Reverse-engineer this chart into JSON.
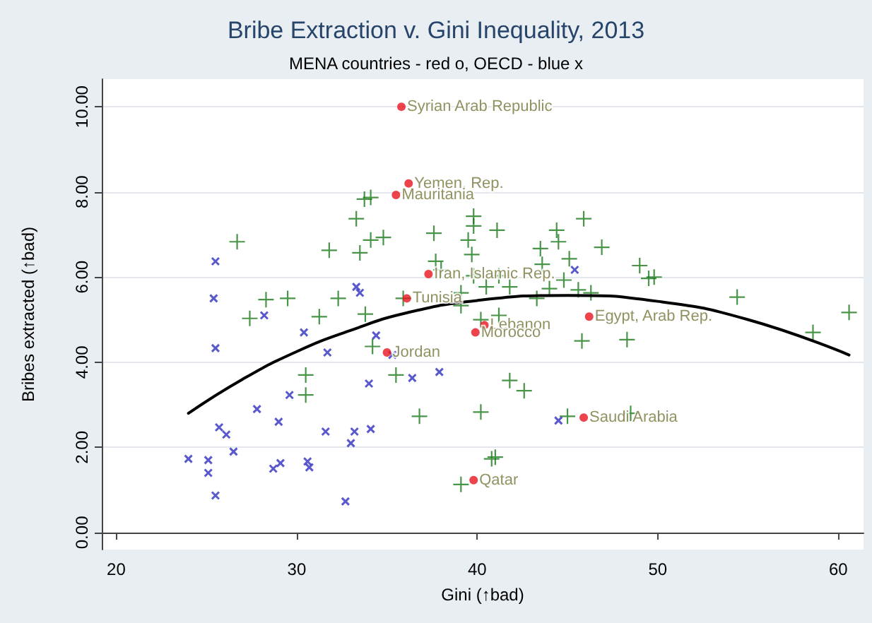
{
  "chart_data": {
    "type": "scatter",
    "title": "Bribe Extraction v. Gini Inequality, 2013",
    "subtitle": "MENA countries - red o, OECD - blue x",
    "xlabel": "Gini (↑bad)",
    "ylabel": "Bribes extracted (↑bad)",
    "xlim": [
      19.2,
      61.4
    ],
    "ylim": [
      -0.4,
      10.65
    ],
    "xticks": [
      20,
      30,
      40,
      50,
      60
    ],
    "yticks": [
      {
        "value": 0,
        "label": "0.00"
      },
      {
        "value": 2,
        "label": "2.00"
      },
      {
        "value": 4,
        "label": "4.00"
      },
      {
        "value": 6,
        "label": "6.00"
      },
      {
        "value": 8,
        "label": "8.00"
      },
      {
        "value": 10,
        "label": "10.00"
      }
    ],
    "grid": "y",
    "series": [
      {
        "type": "scatter",
        "color": "#1a7a1a",
        "marker": "plus",
        "x": [
          33.75,
          34.1,
          33.3,
          26.7,
          31.8,
          33.5,
          34.1,
          34.8,
          37.6,
          39.8,
          39.8,
          39.5,
          39.7,
          37.7,
          38.0,
          39.8,
          40.5,
          28.3,
          29.5,
          32.3,
          31.25,
          27.4,
          33.8,
          35.9,
          39.1,
          40.2,
          34.2,
          30.5,
          30.5,
          35.5,
          36.8,
          40.2,
          39.1,
          40.8,
          41.1,
          45.9,
          44.4,
          44.5,
          43.5,
          46.9,
          45.1,
          49.0,
          49.5,
          49.8,
          41.2,
          43.6,
          44.8,
          39.1,
          41.8,
          43.3,
          44.0,
          45.6,
          46.3,
          54.4,
          60.6,
          41.2,
          45.8,
          48.3,
          58.6,
          41.8,
          42.6,
          45.0,
          48.5,
          41.0
        ],
        "values": [
          7.83,
          7.87,
          7.37,
          6.83,
          6.63,
          6.57,
          6.87,
          6.93,
          7.03,
          7.43,
          7.2,
          6.87,
          6.53,
          6.37,
          6.17,
          6.03,
          5.77,
          5.47,
          5.5,
          5.5,
          5.07,
          5.03,
          5.13,
          5.5,
          5.33,
          5.0,
          4.37,
          3.7,
          3.23,
          3.7,
          2.73,
          2.83,
          1.13,
          1.73,
          7.1,
          7.37,
          7.1,
          6.83,
          6.67,
          6.7,
          6.43,
          6.27,
          5.97,
          6.0,
          6.03,
          6.3,
          5.93,
          5.63,
          5.77,
          5.5,
          5.73,
          5.7,
          5.63,
          5.53,
          5.17,
          5.1,
          4.5,
          4.53,
          4.7,
          3.57,
          3.33,
          2.73,
          2.8,
          1.77
        ]
      },
      {
        "type": "scatter",
        "color": "#3030c0",
        "marker": "cross",
        "x": [
          25.5,
          25.4,
          28.2,
          25.5,
          30.4,
          34.4,
          31.7,
          35.3,
          36.4,
          37.9,
          34.0,
          29.6,
          27.8,
          29.0,
          25.7,
          26.1,
          31.6,
          33.2,
          34.1,
          33.0,
          26.5,
          24.0,
          25.1,
          25.1,
          28.7,
          29.1,
          30.6,
          30.7,
          25.5,
          32.7,
          33.3,
          33.5,
          45.4,
          44.5
        ],
        "values": [
          6.37,
          5.5,
          5.1,
          4.33,
          4.7,
          4.63,
          4.23,
          4.17,
          3.63,
          3.77,
          3.5,
          3.23,
          2.9,
          2.6,
          2.47,
          2.3,
          2.37,
          2.37,
          2.43,
          2.1,
          1.9,
          1.73,
          1.7,
          1.4,
          1.5,
          1.63,
          1.67,
          1.53,
          0.87,
          0.73,
          5.77,
          5.63,
          6.17,
          2.63
        ]
      },
      {
        "type": "scatter",
        "color": "#e8141e",
        "marker": "circle",
        "x": [
          35.8,
          36.2,
          35.5,
          37.3,
          36.1,
          35.0,
          40.4,
          39.9,
          46.2,
          45.9,
          39.8
        ],
        "values": [
          10.0,
          8.2,
          7.93,
          6.07,
          5.5,
          4.23,
          4.87,
          4.7,
          5.07,
          2.7,
          1.23
        ]
      },
      {
        "type": "line",
        "color": "#000000",
        "marker": "none",
        "line_style": "solid",
        "x": [
          24,
          27,
          30,
          33,
          36,
          40,
          45,
          50,
          55,
          60.6
        ],
        "values": [
          2.8,
          3.6,
          4.25,
          4.75,
          5.15,
          5.45,
          5.57,
          5.43,
          5.0,
          4.17
        ]
      }
    ],
    "annotations": [
      {
        "text": "Syrian Arab Republic",
        "x": 35.8,
        "y": 10.0
      },
      {
        "text": "Yemen, Rep.",
        "x": 36.2,
        "y": 8.2
      },
      {
        "text": "Mauritania",
        "x": 35.5,
        "y": 7.93
      },
      {
        "text": "Iran, Islamic Rep.",
        "x": 37.3,
        "y": 6.07
      },
      {
        "text": "Tunisia",
        "x": 36.1,
        "y": 5.5
      },
      {
        "text": "Jordan",
        "x": 35.0,
        "y": 4.23
      },
      {
        "text": "Lebanon",
        "x": 40.4,
        "y": 4.87
      },
      {
        "text": "Morocco",
        "x": 39.9,
        "y": 4.7
      },
      {
        "text": "Egypt, Arab Rep.",
        "x": 46.2,
        "y": 5.07
      },
      {
        "text": "Saudi Arabia",
        "x": 45.9,
        "y": 2.7
      },
      {
        "text": "Qatar",
        "x": 39.8,
        "y": 1.23
      }
    ]
  }
}
